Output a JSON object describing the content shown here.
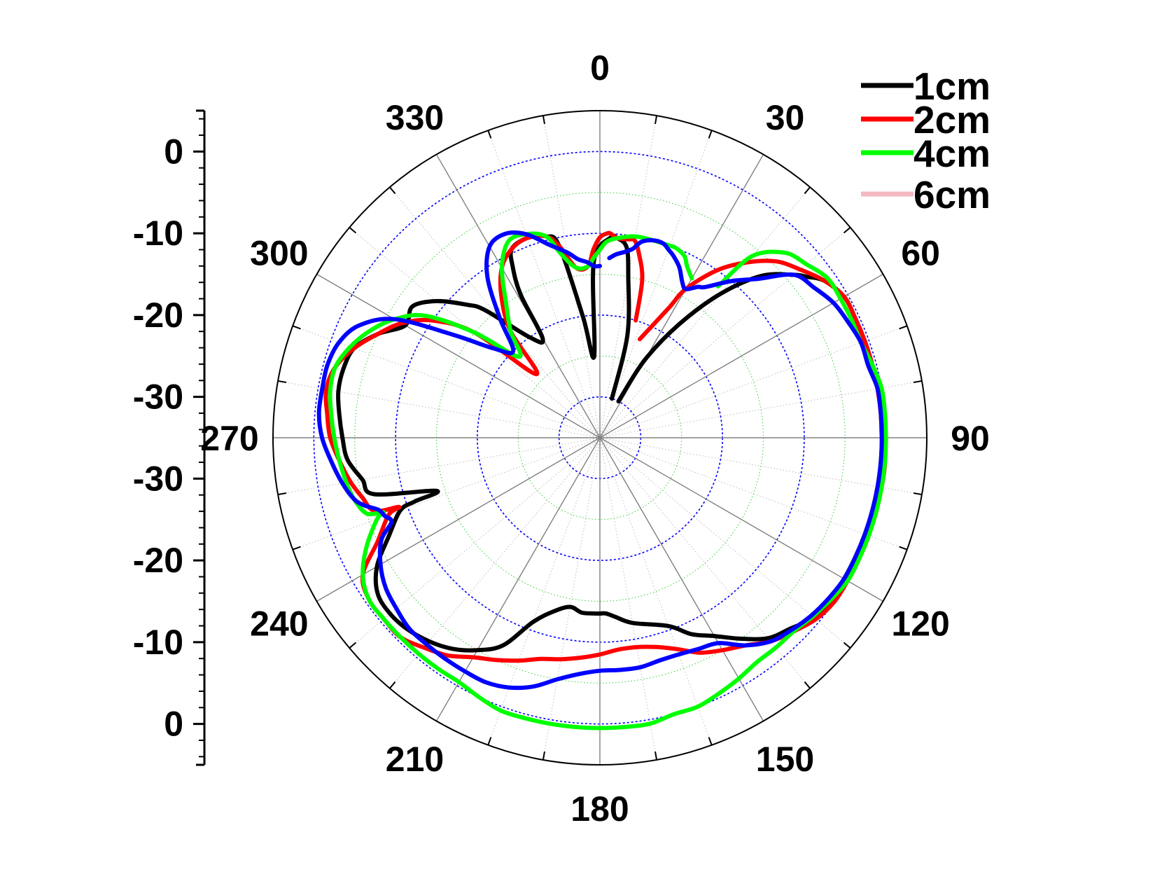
{
  "chart_data": {
    "type": "line",
    "subtype": "polar",
    "title": "",
    "angular_axis": {
      "unit": "degrees",
      "direction": "clockwise",
      "zero_position": "top",
      "tick_labels": [
        "0",
        "30",
        "60",
        "90",
        "120",
        "150",
        "180",
        "210",
        "240",
        "270",
        "300",
        "330"
      ],
      "minor_tick_step": 10
    },
    "radial_axis": {
      "range": [
        -35,
        5
      ],
      "rings": [
        -30,
        -20,
        -10,
        0
      ],
      "minor_rings": [
        -25,
        -15,
        -5
      ],
      "tick_labels_upper": [
        "0",
        "-10",
        "-20",
        "-30"
      ],
      "tick_labels_lower": [
        "-30",
        "-20",
        "-10",
        "0"
      ]
    },
    "grid": true,
    "legend_position": "top-right",
    "series": [
      {
        "name": "1cm",
        "color": "#000000",
        "theta": [
          17,
          15,
          10,
          8,
          5,
          3,
          358,
          356,
          352,
          348,
          345,
          340,
          335,
          333,
          331,
          330,
          325,
          318,
          315,
          310,
          305,
          300,
          295,
          290,
          285,
          280,
          275,
          270,
          265,
          260,
          256,
          252,
          251,
          250,
          245,
          240,
          235,
          230,
          225,
          220,
          215,
          210,
          205,
          200,
          195,
          190,
          186,
          182,
          180,
          178,
          175,
          170,
          160,
          155,
          150,
          145,
          140,
          135,
          130,
          125,
          120,
          115,
          110,
          105,
          100,
          95,
          90,
          85,
          80,
          75,
          70,
          65,
          60,
          55,
          52,
          50,
          45,
          40,
          35,
          30,
          27
        ],
        "r": [
          -30,
          -22,
          -15,
          -11.5,
          -10.5,
          -10.5,
          -13.5,
          -25,
          -20,
          -11,
          -9.5,
          -9,
          -9.5,
          -11.5,
          -15,
          -21,
          -20,
          -14,
          -12,
          -9,
          -7,
          -7.5,
          -5,
          -3,
          -2.5,
          -2.5,
          -3,
          -3.5,
          -4,
          -5.5,
          -6.5,
          -14,
          -11,
          -9,
          -6.5,
          -3.5,
          -1.8,
          -1.5,
          -1.8,
          -2.5,
          -3.5,
          -5,
          -7,
          -11,
          -13,
          -14,
          -13.5,
          -13.5,
          -13.5,
          -13.5,
          -13,
          -12,
          -10.5,
          -8.5,
          -7,
          -5,
          -3,
          -2,
          -0.8,
          -0.5,
          -0.5,
          -0.5,
          -0.5,
          -0.5,
          -0.5,
          -0.5,
          -0.5,
          -0.5,
          -0.5,
          -0.5,
          -0.5,
          -0.5,
          -0.5,
          -1.5,
          -3,
          -4,
          -7,
          -12,
          -18,
          -24,
          -30
        ]
      },
      {
        "name": "2cm",
        "color": "#ff0000",
        "theta": [
          17,
          15,
          12,
          10,
          8,
          5,
          3,
          2,
          0,
          358,
          356,
          352,
          348,
          345,
          340,
          335,
          330,
          325,
          320,
          315,
          310,
          305,
          300,
          295,
          290,
          285,
          280,
          275,
          270,
          265,
          260,
          256,
          252,
          251,
          250,
          245,
          240,
          235,
          230,
          225,
          220,
          215,
          210,
          205,
          200,
          195,
          190,
          185,
          180,
          175,
          170,
          165,
          160,
          155,
          150,
          145,
          140,
          135,
          130,
          125,
          120,
          115,
          110,
          105,
          100,
          95,
          90,
          85,
          80,
          75,
          70,
          65,
          60,
          55,
          50,
          45,
          40,
          35,
          30,
          28,
          22
        ],
        "r": [
          -20,
          -15,
          -12,
          -10.5,
          -10.5,
          -10.5,
          -10,
          -10,
          -10.5,
          -12,
          -14,
          -14,
          -11,
          -9.5,
          -9,
          -9.5,
          -11,
          -14,
          -18,
          -24,
          -15,
          -10,
          -7,
          -5,
          -3,
          -1.5,
          -1,
          -1.5,
          -2,
          -3,
          -4,
          -5,
          -6,
          -9,
          -7.5,
          -5,
          -1.5,
          -0.5,
          -0.5,
          -0.5,
          -1.5,
          -2.5,
          -4,
          -5,
          -6,
          -7,
          -7.5,
          -8,
          -8.5,
          -9,
          -9,
          -8.5,
          -7.5,
          -6,
          -5,
          -4,
          -2.5,
          -1.5,
          -0.5,
          0,
          0,
          0,
          0,
          0,
          0,
          0,
          -0.5,
          -0.5,
          -0.5,
          -0.5,
          -0.5,
          -0.5,
          -0.5,
          -1.5,
          -3,
          -4.5,
          -7,
          -10,
          -14,
          -17,
          -22
        ]
      },
      {
        "name": "4cm",
        "color": "#00ff00",
        "theta": [
          30,
          27,
          25,
          22,
          20,
          15,
          10,
          5,
          2,
          0,
          358,
          356,
          352,
          348,
          345,
          340,
          335,
          330,
          325,
          320,
          315,
          310,
          305,
          300,
          295,
          290,
          285,
          280,
          275,
          270,
          265,
          260,
          256,
          252,
          251,
          250,
          245,
          240,
          235,
          230,
          225,
          220,
          215,
          210,
          205,
          200,
          195,
          190,
          185,
          180,
          175,
          170,
          165,
          160,
          155,
          150,
          145,
          140,
          135,
          130,
          125,
          120,
          115,
          110,
          105,
          100,
          95,
          90,
          85,
          80,
          75,
          70,
          65,
          60,
          55,
          50,
          45,
          40,
          38
        ],
        "r": [
          -12.5,
          -11.5,
          -10.5,
          -10,
          -10,
          -10,
          -10,
          -10.5,
          -11,
          -12,
          -13,
          -14,
          -14,
          -12,
          -9.5,
          -8.5,
          -8.5,
          -11,
          -15,
          -18,
          -21,
          -15,
          -9,
          -6,
          -4,
          -2.5,
          -1.5,
          -1.5,
          -2,
          -2.5,
          -3,
          -3.5,
          -4,
          -5,
          -7,
          -6,
          -3.5,
          -1.5,
          -0.5,
          -0.5,
          -0.5,
          -0.5,
          -0.5,
          -0.5,
          0,
          0.5,
          0.5,
          0.5,
          0.5,
          0.5,
          0.5,
          0.5,
          0,
          0,
          -0.5,
          -1,
          -1.5,
          -1.5,
          -1.5,
          -1,
          -0.5,
          0,
          0,
          0,
          0,
          0,
          0,
          0,
          0,
          0,
          -0.5,
          -1,
          -1,
          -1,
          -1,
          -2,
          -3,
          -6,
          -11.5
        ]
      },
      {
        "name": "6cm",
        "color": "#0000ff",
        "theta": [
          3,
          5,
          8,
          10,
          12,
          15,
          18,
          20,
          22,
          25,
          28,
          30,
          33,
          35,
          40,
          45,
          50,
          55,
          60,
          65,
          70,
          75,
          80,
          85,
          90,
          95,
          100,
          105,
          110,
          115,
          120,
          125,
          130,
          135,
          140,
          145,
          150,
          155,
          160,
          165,
          170,
          175,
          180,
          185,
          190,
          195,
          200,
          205,
          210,
          215,
          220,
          225,
          230,
          235,
          240,
          245,
          248,
          250,
          252,
          254,
          256,
          260,
          265,
          270,
          275,
          280,
          285,
          290,
          295,
          300,
          305,
          310,
          315,
          320,
          325,
          330,
          335,
          340,
          345,
          350,
          353,
          356,
          358,
          360
        ],
        "r": [
          -13,
          -12.5,
          -12,
          -11.5,
          -10.5,
          -10,
          -10,
          -10.5,
          -11,
          -12,
          -13.5,
          -14,
          -13,
          -12.5,
          -10,
          -7.5,
          -4,
          -3,
          -2,
          -1.5,
          -1,
          -1,
          -0.5,
          -0.5,
          -0.5,
          -0.5,
          -0.5,
          -0.5,
          -0.5,
          -0.5,
          -0.5,
          -0.8,
          -1.2,
          -1.8,
          -2.5,
          -4,
          -6,
          -6.5,
          -6.8,
          -6.8,
          -6.5,
          -6.5,
          -6.5,
          -6,
          -5,
          -3.5,
          -2.5,
          -2,
          -2,
          -2,
          -2,
          -2,
          -2.5,
          -3,
          -4,
          -5.5,
          -7.5,
          -7,
          -6.5,
          -5,
          -4,
          -3,
          -2,
          -1,
          -0.5,
          -0.5,
          -0.5,
          -1,
          -2.5,
          -6,
          -13,
          -18,
          -20,
          -16,
          -11,
          -8,
          -7.5,
          -8.5,
          -10.5,
          -12,
          -13,
          -13.5,
          -14,
          -14
        ]
      }
    ]
  }
}
